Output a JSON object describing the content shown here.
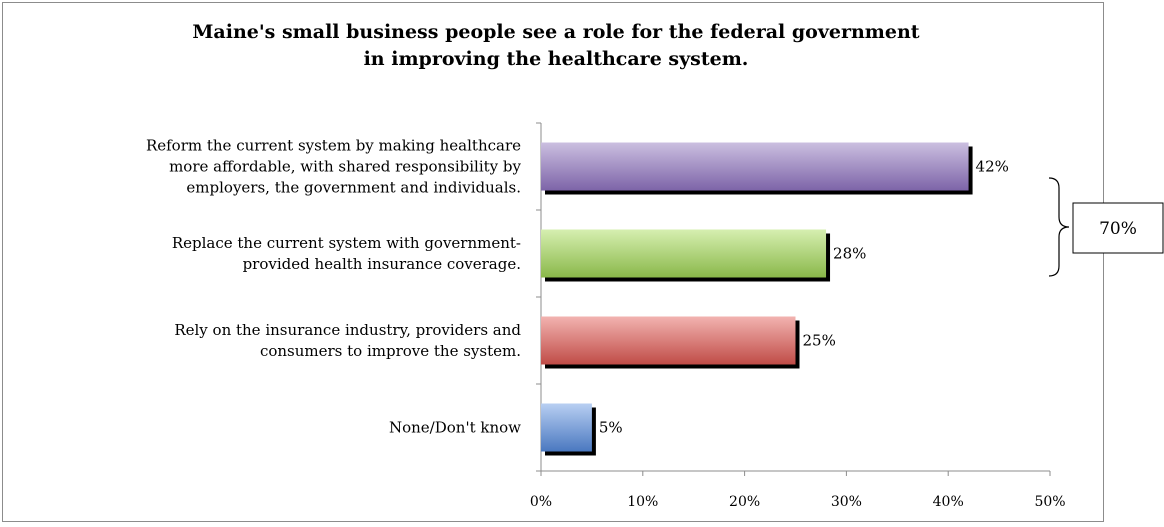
{
  "chart_data": {
    "type": "bar",
    "orientation": "horizontal",
    "title": [
      "Maine's small business people see a role for the federal government",
      "in improving the healthcare system."
    ],
    "categories": [
      [
        "Reform the current system by making healthcare",
        "more affordable, with shared responsibility by",
        "employers, the government and individuals."
      ],
      [
        "Replace the current system with government-",
        "provided health insurance coverage."
      ],
      [
        "Rely on the insurance industry, providers and",
        "consumers to improve the system."
      ],
      [
        "None/Don't know"
      ]
    ],
    "values": [
      42,
      28,
      25,
      5
    ],
    "value_labels": [
      "42%",
      "28%",
      "25%",
      "5%"
    ],
    "xlim": [
      0,
      50
    ],
    "x_ticks": [
      "0%",
      "10%",
      "20%",
      "30%",
      "40%",
      "50%"
    ],
    "grid": false,
    "legend": "none",
    "colors": [
      {
        "light": "#cbbfe0",
        "dark": "#7d64a8"
      },
      {
        "light": "#d6efb0",
        "dark": "#8ab84a"
      },
      {
        "light": "#f2b3b0",
        "dark": "#c04c47"
      },
      {
        "light": "#b8cff2",
        "dark": "#4a78c0"
      }
    ],
    "annotation": {
      "text": "70%",
      "groups": "first two bars"
    }
  }
}
